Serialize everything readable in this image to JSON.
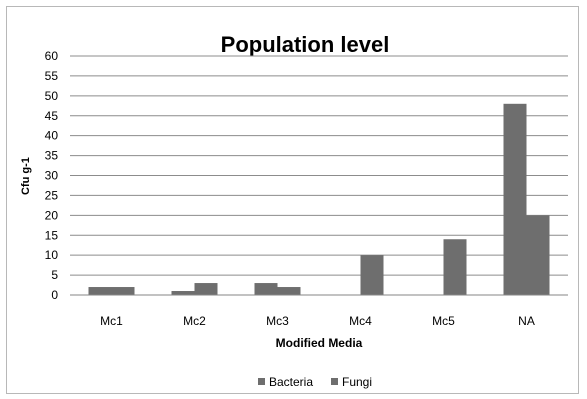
{
  "chart_data": {
    "type": "bar",
    "title": "Population level",
    "xlabel": "Modified Media",
    "ylabel": "Cfu g-1",
    "categories": [
      "Mc1",
      "Mc2",
      "Mc3",
      "Mc4",
      "Mc5",
      "NA"
    ],
    "series": [
      {
        "name": "Bacteria",
        "values": [
          2,
          1,
          3,
          0,
          0,
          48
        ],
        "color": "#6e6e6e"
      },
      {
        "name": "Fungi",
        "values": [
          2,
          3,
          2,
          10,
          14,
          20
        ],
        "color": "#6e6e6e"
      }
    ],
    "ylim": [
      0,
      60
    ],
    "yticks": [
      0,
      5,
      10,
      15,
      20,
      25,
      30,
      35,
      40,
      45,
      50,
      55,
      60
    ],
    "grid": true,
    "legend_position": "bottom"
  }
}
